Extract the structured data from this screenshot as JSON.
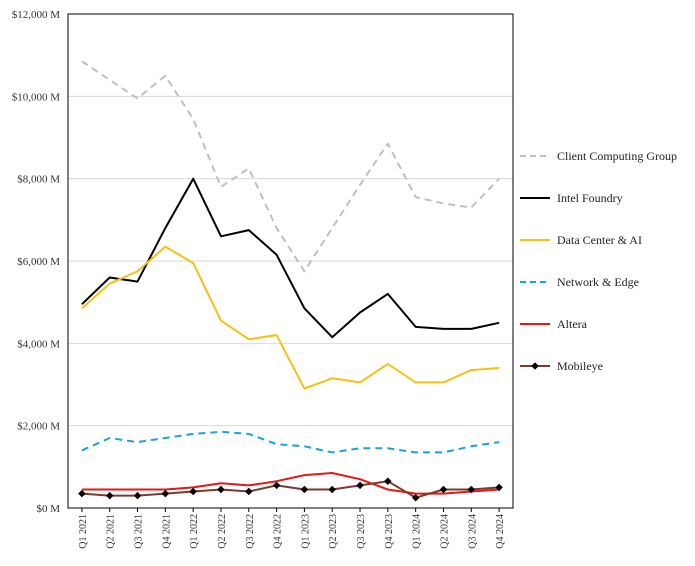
{
  "chart_data": {
    "type": "line",
    "title": "",
    "xlabel": "",
    "ylabel": "",
    "ylim": [
      0,
      12000
    ],
    "yticks": [
      {
        "value": 0,
        "label": "$0 M"
      },
      {
        "value": 2000,
        "label": "$2,000 M"
      },
      {
        "value": 4000,
        "label": "$4,000 M"
      },
      {
        "value": 6000,
        "label": "$6,000 M"
      },
      {
        "value": 8000,
        "label": "$8,000 M"
      },
      {
        "value": 10000,
        "label": "$10,000 M"
      },
      {
        "value": 12000,
        "label": "$12,000 M"
      }
    ],
    "grid": true,
    "legend_position": "right",
    "categories": [
      "Q1 2021",
      "Q2 2021",
      "Q3 2021",
      "Q4 2021",
      "Q1 2022",
      "Q2 2022",
      "Q3 2022",
      "Q4 2022",
      "Q1 2023",
      "Q2 2023",
      "Q3 2023",
      "Q4 2023",
      "Q1 2024",
      "Q2 2024",
      "Q3 2024",
      "Q4 2024"
    ],
    "series": [
      {
        "name": "Client Computing Group",
        "color": "#bfbfbf",
        "style": "dashed",
        "marker": "none",
        "values": [
          10850,
          10400,
          9950,
          10500,
          9450,
          7800,
          8250,
          6800,
          5750,
          6800,
          7850,
          8850,
          7550,
          7400,
          7300,
          8000
        ]
      },
      {
        "name": "Intel Foundry",
        "color": "#000000",
        "style": "solid",
        "marker": "none",
        "values": [
          4950,
          5600,
          5500,
          6800,
          8000,
          6600,
          6750,
          6150,
          4850,
          4150,
          4750,
          5200,
          4400,
          4350,
          4350,
          4500
        ]
      },
      {
        "name": "Data Center & AI",
        "color": "#f2c314",
        "style": "solid",
        "marker": "none",
        "values": [
          4850,
          5450,
          5750,
          6350,
          5950,
          4550,
          4100,
          4200,
          2900,
          3150,
          3050,
          3500,
          3050,
          3050,
          3350,
          3400
        ]
      },
      {
        "name": "Network & Edge",
        "color": "#1aa3d6",
        "style": "dashed",
        "marker": "none",
        "values": [
          1400,
          1700,
          1600,
          1700,
          1800,
          1850,
          1800,
          1550,
          1500,
          1350,
          1450,
          1450,
          1350,
          1350,
          1500,
          1600
        ]
      },
      {
        "name": "Altera",
        "color": "#e01a1a",
        "style": "solid",
        "marker": "none",
        "values": [
          450,
          450,
          450,
          450,
          500,
          600,
          550,
          650,
          800,
          850,
          700,
          450,
          350,
          350,
          400,
          450
        ]
      },
      {
        "name": "Mobileye",
        "color": "#7a3b2e",
        "style": "solid",
        "marker": "diamond",
        "values": [
          350,
          300,
          300,
          350,
          400,
          450,
          400,
          550,
          450,
          450,
          550,
          650,
          250,
          450,
          450,
          500
        ]
      }
    ]
  }
}
